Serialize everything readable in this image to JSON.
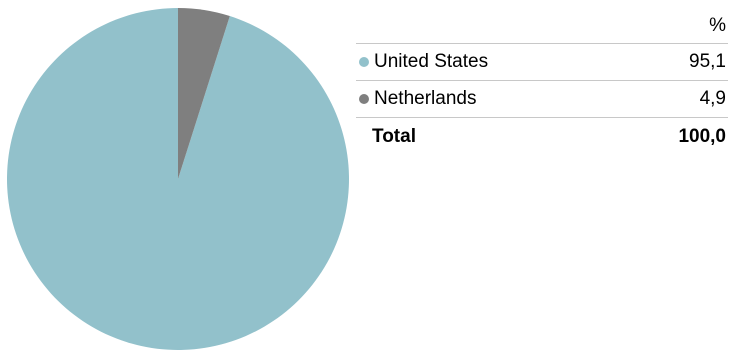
{
  "chart_data": {
    "type": "pie",
    "unit_header": "%",
    "slices": [
      {
        "label": "United States",
        "value": 95.1,
        "display": "95,1",
        "color": "#92c1cb"
      },
      {
        "label": "Netherlands",
        "value": 4.9,
        "display": "4,9",
        "color": "#7f7f7f"
      }
    ],
    "total": {
      "label": "Total",
      "display": "100,0"
    },
    "start_direction": "top",
    "direction": "counterclockwise",
    "legend_placement": "right"
  }
}
